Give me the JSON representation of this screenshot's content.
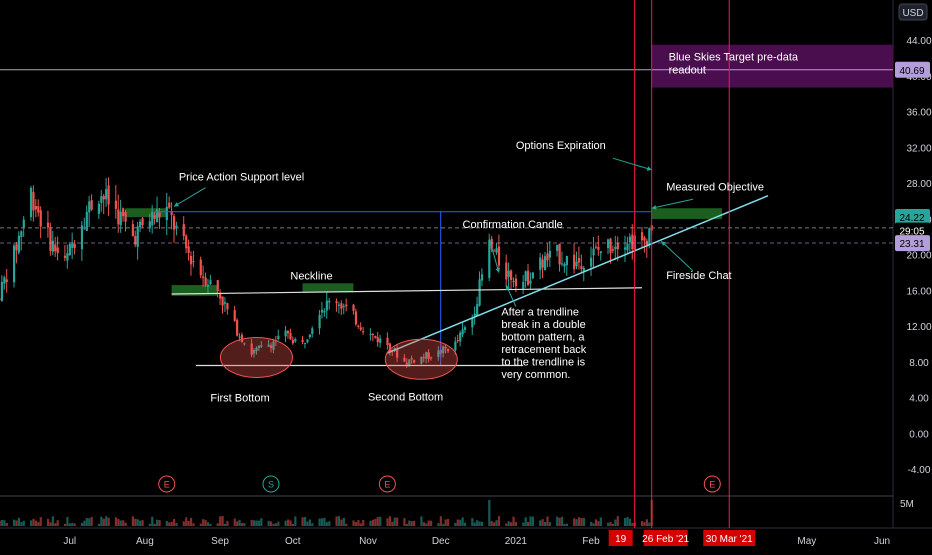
{
  "currency_label": "USD",
  "colors": {
    "up": "#26a69a",
    "down": "#ef5350",
    "axis_text": "#d1d4dc",
    "annotation_text": "#ffffff",
    "trendline": "#80deea",
    "red_line": "#ff1744",
    "purple_box": "#4a0e4e",
    "green_zone": "#1b5e20",
    "blue_guide": "#2962ff"
  },
  "chart_data": {
    "type": "candlestick",
    "price_axis": {
      "ylim": [
        -7,
        48.5
      ],
      "ticks": [
        "44.00",
        "40.00",
        "36.00",
        "32.00",
        "28.00",
        "24.00",
        "20.00",
        "16.00",
        "12.00",
        "8.00",
        "4.00",
        "0.00",
        "-4.00"
      ],
      "tick_values": [
        44,
        40,
        36,
        32,
        28,
        24,
        20,
        16,
        12,
        8,
        4,
        0,
        -4
      ]
    },
    "time_axis": {
      "labels": [
        "Jul",
        "Aug",
        "Sep",
        "Oct",
        "Nov",
        "Dec",
        "2021",
        "Feb",
        "Mar",
        "May",
        "Jun"
      ],
      "label_dates": [
        "2020-07-01",
        "2020-08-01",
        "2020-09-01",
        "2020-10-01",
        "2020-11-01",
        "2020-12-01",
        "2021-01-01",
        "2021-02-01",
        "2021-03-01",
        "2021-05-01",
        "2021-06-01"
      ],
      "highlighted_dates": [
        "19",
        "26 Feb '21",
        "30 Mar '21"
      ]
    },
    "price_badges": [
      {
        "label": "40.69",
        "value": 40.69,
        "color": "#b39ddb"
      },
      {
        "label": "24.22",
        "value": 24.22,
        "color": "#26a69a"
      },
      {
        "label": "29:05",
        "value": 22.7,
        "color": "#000000"
      },
      {
        "label": "23.31",
        "value": 21.3,
        "color": "#b39ddb"
      }
    ],
    "volume_label": "5M",
    "earnings_markers": [
      {
        "date": "2020-08-10",
        "label": "E"
      },
      {
        "date": "2020-09-22",
        "label": "S"
      },
      {
        "date": "2020-11-09",
        "label": "E"
      },
      {
        "date": "2021-03-23",
        "label": "E"
      }
    ],
    "annotations": {
      "price_action": "Price Action Support level",
      "neckline": "Neckline",
      "first_bottom": "First Bottom",
      "second_bottom": "Second Bottom",
      "confirmation": "Confirmation Candle",
      "options_expiration": "Options Expiration",
      "measured_objective": "Measured Objective",
      "fireside": "Fireside Chat",
      "blue_skies": "Blue Skies Target pre-data readout",
      "note": "After a trendline break in a double bottom pattern, a retracement back to the trendline is very common."
    },
    "levels": {
      "horizontal_target": 40.69,
      "measured_zone": [
        24.0,
        25.2
      ],
      "support_level": 24.8,
      "neckline_start": 15.6,
      "neckline_end": 16.3,
      "bottom_line": 7.6,
      "current_price": 23.31,
      "dashed_price": 23.0
    },
    "trendline": {
      "from": [
        "2020-11-09",
        9.0
      ],
      "to": [
        "2021-04-15",
        26.6
      ]
    },
    "purple_target_zone": [
      38.7,
      43.5
    ],
    "candles_summary": {
      "start": "2020-06-01",
      "end": "2021-02-26",
      "anchors": [
        [
          "2020-06-01",
          15
        ],
        [
          "2020-06-08",
          20
        ],
        [
          "2020-06-15",
          27
        ],
        [
          "2020-06-22",
          22
        ],
        [
          "2020-06-29",
          19
        ],
        [
          "2020-07-06",
          24
        ],
        [
          "2020-07-13",
          27
        ],
        [
          "2020-07-20",
          25
        ],
        [
          "2020-07-27",
          22
        ],
        [
          "2020-08-03",
          24
        ],
        [
          "2020-08-10",
          25
        ],
        [
          "2020-08-17",
          21
        ],
        [
          "2020-08-24",
          18
        ],
        [
          "2020-08-31",
          16
        ],
        [
          "2020-09-07",
          12
        ],
        [
          "2020-09-14",
          9
        ],
        [
          "2020-09-21",
          10
        ],
        [
          "2020-09-28",
          11
        ],
        [
          "2020-10-05",
          10
        ],
        [
          "2020-10-12",
          14
        ],
        [
          "2020-10-19",
          15
        ],
        [
          "2020-10-26",
          13
        ],
        [
          "2020-11-02",
          11
        ],
        [
          "2020-11-09",
          10
        ],
        [
          "2020-11-16",
          8
        ],
        [
          "2020-11-23",
          8.5
        ],
        [
          "2020-11-30",
          9
        ],
        [
          "2020-12-07",
          10
        ],
        [
          "2020-12-14",
          13
        ],
        [
          "2020-12-21",
          21
        ],
        [
          "2020-12-28",
          18
        ],
        [
          "2021-01-04",
          17
        ],
        [
          "2021-01-11",
          19
        ],
        [
          "2021-01-18",
          20
        ],
        [
          "2021-01-25",
          19
        ],
        [
          "2021-02-01",
          20
        ],
        [
          "2021-02-08",
          21
        ],
        [
          "2021-02-15",
          22
        ],
        [
          "2021-02-22",
          21
        ],
        [
          "2021-02-26",
          23.3
        ]
      ],
      "volume_spike_dates": [
        "2020-12-21",
        "2021-02-26"
      ]
    }
  }
}
